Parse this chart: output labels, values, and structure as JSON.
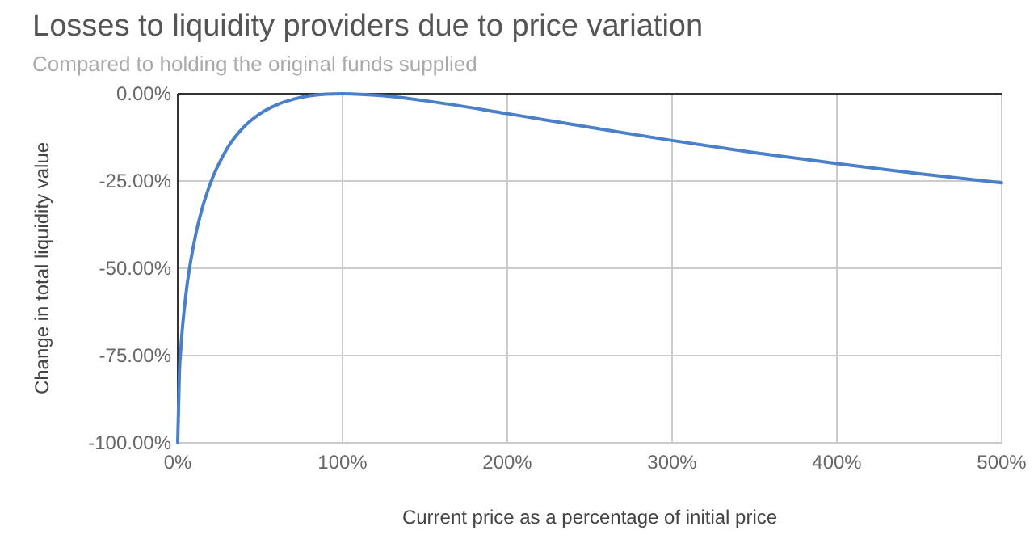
{
  "chart_data": {
    "type": "line",
    "title": "Losses to liquidity providers due to price variation",
    "subtitle": "Compared to holding the original funds supplied",
    "xlabel": "Current price as a percentage of initial price",
    "ylabel": "Change in total liquidity value",
    "x": [
      0,
      1,
      2,
      5,
      10,
      15,
      20,
      30,
      40,
      50,
      60,
      70,
      80,
      90,
      100,
      125,
      150,
      200,
      250,
      300,
      350,
      400,
      450,
      500
    ],
    "series": [
      {
        "color": "#4a7fc9",
        "values": [
          -100,
          -80.2,
          -72.3,
          -57.4,
          -42.5,
          -32.6,
          -25.5,
          -15.7,
          -9.6,
          -5.7,
          -3.2,
          -1.6,
          -0.6,
          -0.1,
          0,
          -0.6,
          -2.0,
          -5.7,
          -9.6,
          -13.4,
          -16.9,
          -20.0,
          -22.9,
          -25.5
        ]
      }
    ],
    "xlim": [
      0,
      500
    ],
    "ylim": [
      -100,
      0
    ],
    "xticks": [
      {
        "value": 0,
        "label": "0%"
      },
      {
        "value": 100,
        "label": "100%"
      },
      {
        "value": 200,
        "label": "200%"
      },
      {
        "value": 300,
        "label": "300%"
      },
      {
        "value": 400,
        "label": "400%"
      },
      {
        "value": 500,
        "label": "500%"
      }
    ],
    "yticks": [
      {
        "value": -100,
        "label": "-100.00%"
      },
      {
        "value": -75,
        "label": "-75.00%"
      },
      {
        "value": -50,
        "label": "-50.00%"
      },
      {
        "value": -25,
        "label": "-25.00%"
      },
      {
        "value": 0,
        "label": "0.00%"
      }
    ],
    "grid": true,
    "marker": "none",
    "line_style": "solid"
  }
}
